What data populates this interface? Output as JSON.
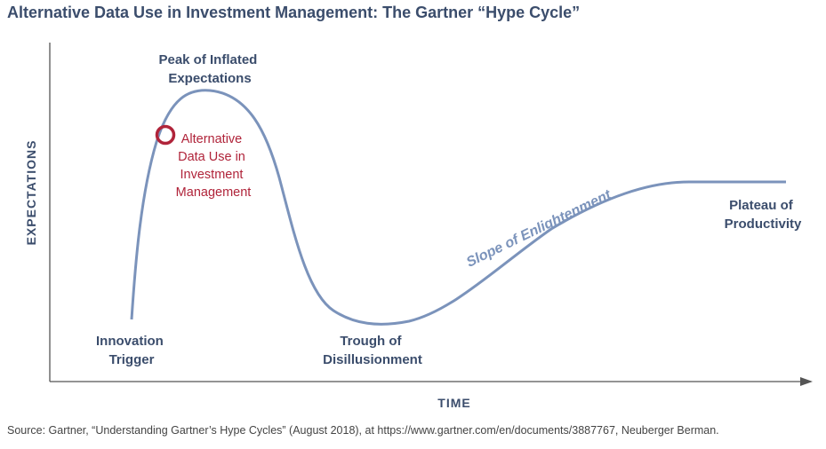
{
  "title": "Alternative Data Use in Investment Management: The Gartner “Hype Cycle”",
  "axes": {
    "y_label": "EXPECTATIONS",
    "x_label": "TIME"
  },
  "stages": {
    "peak": [
      "Peak of Inflated",
      "Expectations"
    ],
    "trigger": [
      "Innovation",
      "Trigger"
    ],
    "trough": [
      "Trough of",
      "Disillusionment"
    ],
    "slope": "Slope of Enlightenment",
    "plateau": [
      "Plateau of",
      "Productivity"
    ]
  },
  "marker": {
    "lines": [
      "Alternative",
      "Data Use in",
      "Investment",
      "Management"
    ]
  },
  "source": "Source: Gartner, “Understanding Gartner’s Hype Cycles” (August 2018), at https://www.gartner.com/en/documents/3887767, Neuberger Berman.",
  "colors": {
    "curve": "#7b93bb",
    "axis": "#555555",
    "label": "#3b4d6c",
    "marker": "#b0243a"
  }
}
